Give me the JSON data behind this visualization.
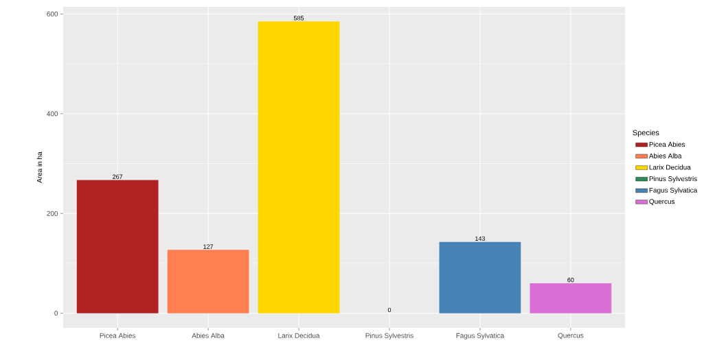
{
  "chart_data": {
    "type": "bar",
    "ylabel": "Area in ha",
    "legend_title": "Species",
    "categories": [
      "Picea Abies",
      "Abies Alba",
      "Larix Decidua",
      "Pinus Sylvestris",
      "Fagus Sylvatica",
      "Quercus"
    ],
    "series": [
      {
        "name": "Picea Abies",
        "color": "#b22222",
        "values": [
          267,
          null,
          null,
          null,
          null,
          null
        ]
      },
      {
        "name": "Abies Alba",
        "color": "#ff7f50",
        "values": [
          null,
          127,
          null,
          null,
          null,
          null
        ]
      },
      {
        "name": "Larix Decidua",
        "color": "#ffd700",
        "values": [
          null,
          null,
          585,
          null,
          null,
          null
        ]
      },
      {
        "name": "Pinus Sylvestris",
        "color": "#2e8b57",
        "values": [
          null,
          null,
          null,
          0,
          null,
          null
        ]
      },
      {
        "name": "Fagus Sylvatica",
        "color": "#4682b4",
        "values": [
          null,
          null,
          null,
          null,
          143,
          null
        ]
      },
      {
        "name": "Quercus",
        "color": "#da70d6",
        "values": [
          null,
          null,
          null,
          null,
          null,
          60
        ]
      }
    ],
    "ylim": [
      -29.25,
      614.25
    ],
    "yticks": [
      0,
      200,
      400,
      600
    ],
    "grid": true,
    "legend": "right",
    "data_labels": true
  }
}
